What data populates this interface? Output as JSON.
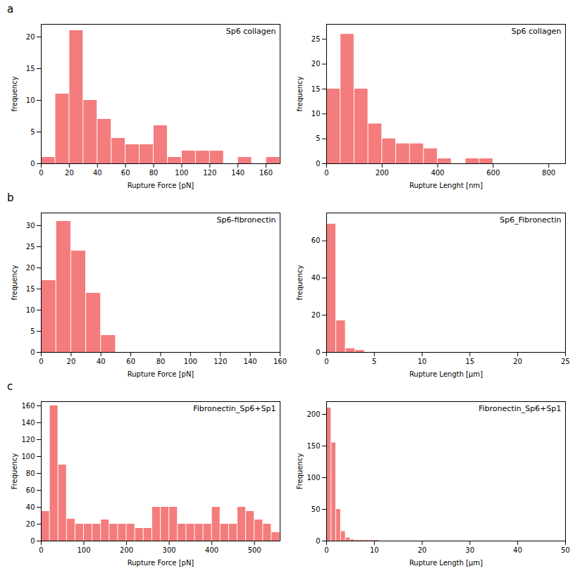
{
  "chart_data": [
    {
      "type": "histogram",
      "title": "a",
      "annotations": [
        "Sp6 collagen"
      ],
      "xlabel": "Rupture Force [pN]",
      "ylabel": "frequency",
      "color": "#F47C7C",
      "xlim": [
        0,
        170
      ],
      "ylim": [
        0,
        22
      ],
      "xticks": [
        0,
        20,
        40,
        60,
        80,
        100,
        120,
        140,
        160
      ],
      "yticks": [
        0,
        5,
        10,
        15,
        20
      ],
      "bins": [
        0,
        10,
        20,
        30,
        40,
        50,
        60,
        70,
        80,
        90,
        100,
        110,
        120,
        130,
        140,
        150,
        160,
        170
      ],
      "values": [
        1,
        11,
        21,
        10,
        7,
        4,
        3,
        3,
        6,
        1,
        2,
        2,
        2,
        0,
        1,
        0,
        1
      ]
    },
    {
      "type": "histogram",
      "annotations": [
        "Sp6 collagen"
      ],
      "xlabel": "Rupture Lenght [nm]",
      "ylabel": "frequency",
      "color": "#F47C7C",
      "xlim": [
        0,
        860
      ],
      "ylim": [
        0,
        28
      ],
      "xticks": [
        0,
        200,
        400,
        600,
        800
      ],
      "yticks": [
        0,
        5,
        10,
        15,
        20,
        25
      ],
      "bins": [
        0,
        50,
        100,
        150,
        200,
        250,
        300,
        350,
        400,
        450,
        500,
        550,
        600,
        650,
        700,
        750,
        800,
        850
      ],
      "values": [
        15,
        26,
        15,
        8,
        5,
        4,
        4,
        3,
        1,
        0,
        1,
        1,
        0,
        0,
        0,
        0,
        0
      ]
    },
    {
      "type": "histogram",
      "title": "b",
      "annotations": [
        "Sp6-fibronectin"
      ],
      "xlabel": "Rupture Force [pN]",
      "ylabel": "frequency",
      "color": "#F47C7C",
      "xlim": [
        0,
        160
      ],
      "ylim": [
        0,
        33
      ],
      "xticks": [
        0,
        20,
        40,
        60,
        80,
        100,
        120,
        140,
        160
      ],
      "yticks": [
        0,
        5,
        10,
        15,
        20,
        25,
        30
      ],
      "bins": [
        0,
        10,
        20,
        30,
        40,
        50,
        60,
        70,
        80,
        90,
        100,
        110,
        120,
        130,
        140,
        150,
        160
      ],
      "values": [
        17,
        31,
        24,
        14,
        4,
        0,
        0,
        0,
        0,
        0,
        0,
        0,
        0,
        0,
        0,
        0
      ]
    },
    {
      "type": "histogram",
      "annotations": [
        "Sp6_Fibronectin"
      ],
      "xlabel": "Rupture Length [μm]",
      "ylabel": "frequency",
      "color": "#F47C7C",
      "xlim": [
        0,
        25
      ],
      "ylim": [
        0,
        75
      ],
      "xticks": [
        0,
        5,
        10,
        15,
        20,
        25
      ],
      "yticks": [
        0,
        20,
        40,
        60
      ],
      "bins": [
        0,
        1,
        2,
        3,
        4,
        5,
        6,
        7,
        8,
        9,
        10,
        11,
        12,
        13,
        14,
        15,
        16,
        17,
        18,
        19,
        20,
        21,
        22,
        23,
        24,
        25
      ],
      "values": [
        69,
        17,
        2,
        1,
        0,
        0,
        0,
        0,
        0,
        0,
        0,
        0,
        0,
        0,
        0,
        0,
        0,
        0,
        0,
        0,
        0,
        0,
        0,
        0,
        0
      ]
    },
    {
      "type": "histogram",
      "title": "c",
      "annotations": [
        "Fibronectin_Sp6+Sp1"
      ],
      "xlabel": "Rupture Force [pN]",
      "ylabel": "Frequency",
      "color": "#F47C7C",
      "xlim": [
        0,
        560
      ],
      "ylim": [
        0,
        165
      ],
      "xticks": [
        0,
        100,
        200,
        300,
        400,
        500
      ],
      "yticks": [
        0,
        20,
        40,
        60,
        80,
        100,
        120,
        140,
        160
      ],
      "bins": [
        0,
        20,
        40,
        60,
        80,
        100,
        120,
        140,
        160,
        180,
        200,
        220,
        240,
        260,
        280,
        300,
        320,
        340,
        360,
        380,
        400,
        420,
        440,
        460,
        480,
        500,
        520,
        540,
        560
      ],
      "values": [
        35,
        160,
        90,
        26,
        20,
        20,
        20,
        25,
        20,
        20,
        20,
        15,
        15,
        40,
        40,
        40,
        20,
        20,
        20,
        20,
        40,
        20,
        20,
        40,
        35,
        25,
        20,
        10
      ]
    },
    {
      "type": "histogram",
      "annotations": [
        "Fibronectin_Sp6+Sp1"
      ],
      "xlabel": "Rupture Length [μm]",
      "ylabel": "Frequency",
      "color": "#F47C7C",
      "xlim": [
        0,
        50
      ],
      "ylim": [
        0,
        220
      ],
      "xticks": [
        0,
        10,
        20,
        30,
        40,
        50
      ],
      "yticks": [
        0,
        50,
        100,
        150,
        200
      ],
      "bins": [
        0,
        1,
        2,
        3,
        4,
        5,
        6,
        7,
        8,
        9,
        10,
        11,
        12,
        13,
        14,
        15,
        16,
        17,
        18,
        19,
        20,
        21,
        22,
        23,
        24,
        25,
        26,
        27,
        28,
        29,
        30,
        31,
        32,
        33,
        34,
        35,
        36,
        37,
        38,
        39,
        40,
        41,
        42,
        43,
        44,
        45,
        46,
        47,
        48,
        49,
        50
      ],
      "values": [
        210,
        155,
        50,
        15,
        5,
        2,
        1,
        1,
        1,
        1,
        1,
        0,
        0,
        0,
        0,
        0,
        0,
        0,
        0,
        0,
        0,
        0,
        0,
        0,
        0,
        0,
        0,
        0,
        0,
        0,
        0,
        0,
        0,
        0,
        0,
        0,
        0,
        0,
        0,
        0,
        0,
        0,
        0,
        0,
        0,
        0,
        0,
        0,
        0,
        0
      ]
    }
  ]
}
